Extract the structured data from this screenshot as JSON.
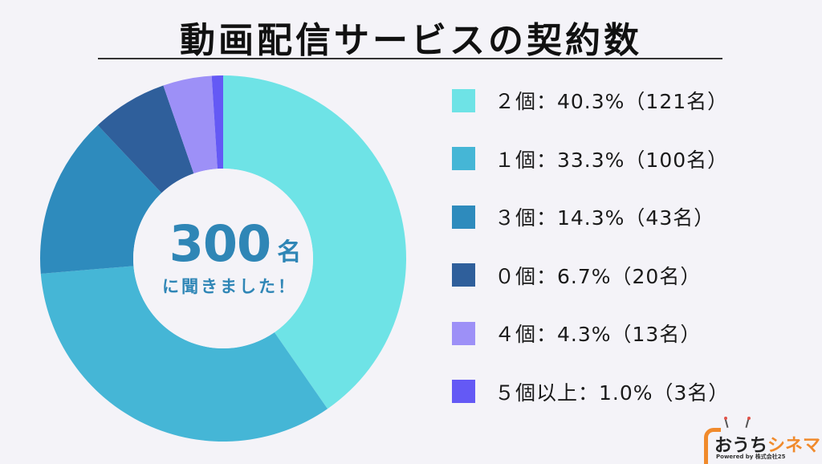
{
  "title": "動画配信サービスの契約数",
  "center": {
    "number": "300",
    "unit": "名",
    "subtitle": "に聞きました！"
  },
  "legend": [
    {
      "label": "２個：40.3%（121名）",
      "color": "#6ee3e6"
    },
    {
      "label": "１個：33.3%（100名）",
      "color": "#45b6d6"
    },
    {
      "label": "３個：14.3%（43名）",
      "color": "#2e8bbd"
    },
    {
      "label": "０個：6.7%（20名）",
      "color": "#2f5f9b"
    },
    {
      "label": "４個：4.3%（13名）",
      "color": "#9d90f7"
    },
    {
      "label": "５個以上：1.0%（3名）",
      "color": "#6459f5"
    }
  ],
  "logo": {
    "name_part1": "おうち",
    "name_part2": "シネマ",
    "powered": "Powered by 株式会社25"
  },
  "chart_data": {
    "type": "pie",
    "title": "動画配信サービスの契約数",
    "total": 300,
    "total_label": "300名に聞きました！",
    "categories": [
      "2個",
      "1個",
      "3個",
      "0個",
      "4個",
      "5個以上"
    ],
    "values": [
      40.3,
      33.3,
      14.3,
      6.7,
      4.3,
      1.0
    ],
    "counts": [
      121,
      100,
      43,
      20,
      13,
      3
    ],
    "unit": "%",
    "colors": [
      "#6ee3e6",
      "#45b6d6",
      "#2e8bbd",
      "#2f5f9b",
      "#9d90f7",
      "#6459f5"
    ],
    "donut": true,
    "start_angle": "12 o'clock, clockwise",
    "legend_position": "right"
  }
}
